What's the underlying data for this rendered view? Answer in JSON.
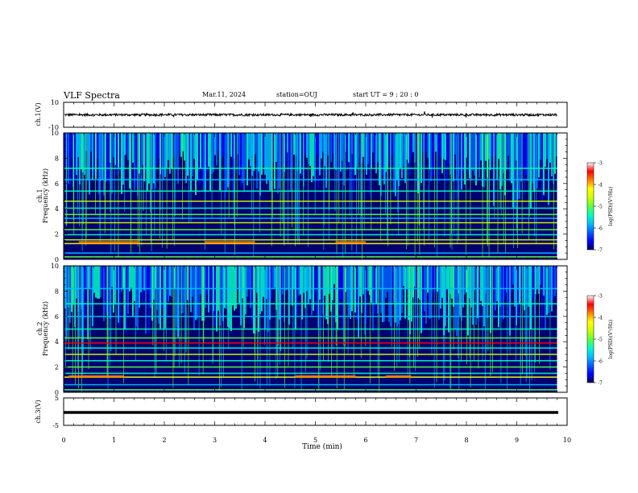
{
  "header": {
    "title": "VLF Spectra",
    "date": "Mar.11, 2024",
    "station": "station=OUJ",
    "start": "start UT =  9 : 20 : 0"
  },
  "colors": {
    "palette": [
      "#000060",
      "#0000ff",
      "#0060ff",
      "#00c0ff",
      "#00ffc0",
      "#60ff40",
      "#d0ff00",
      "#ffff00",
      "#ff8000",
      "#ff0000",
      "#ffffff"
    ]
  },
  "chart_data": [
    {
      "type": "line",
      "ylabel": "ch.1(V)",
      "ylim": [
        -10,
        10
      ],
      "yticks": [
        "10",
        "-10"
      ],
      "series": [
        {
          "values_range": [
            -1,
            1
          ]
        }
      ]
    },
    {
      "type": "heatmap",
      "ylabel_line1": "ch.1",
      "ylabel_line2": "Frequency (kHz)",
      "ylim": [
        0,
        10
      ],
      "yticks": [
        "0",
        "2",
        "4",
        "6",
        "8",
        "10"
      ],
      "colorbar": {
        "label": "log(PSD)(V²/Hz)",
        "ticks": [
          "-3",
          "-4",
          "-5",
          "-6",
          "-7"
        ],
        "range": [
          -7,
          -3
        ]
      }
    },
    {
      "type": "heatmap",
      "ylabel_line1": "ch.2",
      "ylabel_line2": "Frequency (kHz)",
      "ylim": [
        0,
        10
      ],
      "yticks": [
        "0",
        "2",
        "4",
        "6",
        "8",
        "10"
      ],
      "colorbar": {
        "label": "log(PSD)(V²/Hz)",
        "ticks": [
          "-3",
          "-4",
          "-5",
          "-6",
          "-7"
        ],
        "range": [
          -7,
          -3
        ]
      }
    },
    {
      "type": "line",
      "ylabel": "ch.3(V)",
      "ylim": [
        -5,
        5
      ],
      "yticks": [
        "5",
        "-5"
      ]
    }
  ],
  "xaxis": {
    "label": "Time (min)",
    "xlim": [
      0,
      10
    ],
    "ticks": [
      "0",
      "1",
      "2",
      "3",
      "4",
      "5",
      "6",
      "7",
      "8",
      "9",
      "10"
    ]
  }
}
